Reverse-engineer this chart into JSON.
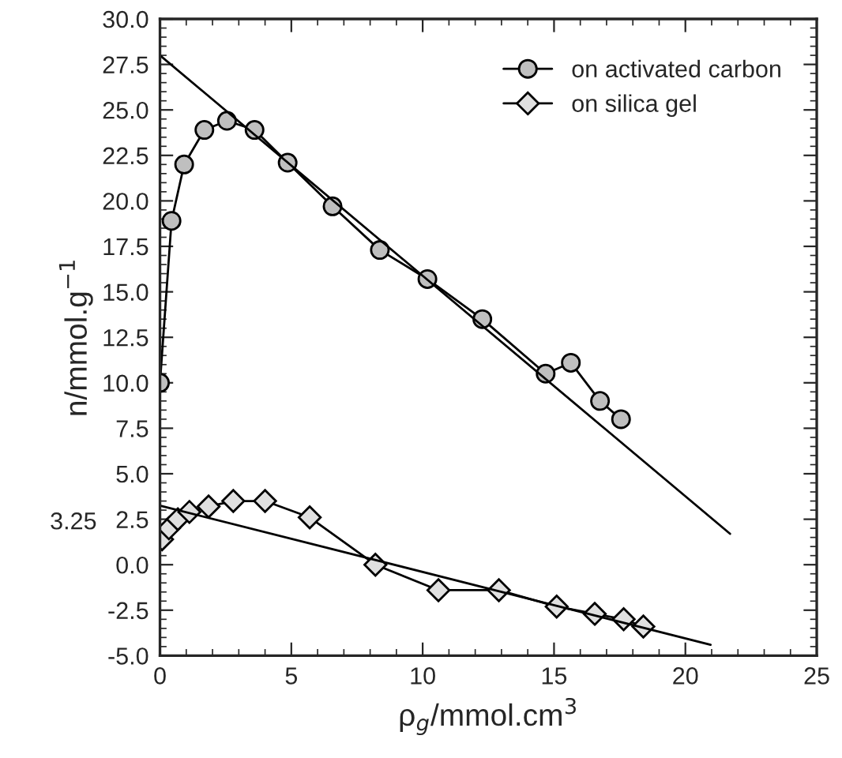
{
  "chart_data": {
    "type": "line",
    "xlabel": "ρ$_{g}$/mmol.cm$^{3}$",
    "ylabel": "n/mmol.g$^{−1}$",
    "xlim": [
      0,
      25
    ],
    "xticks": [
      0,
      5,
      10,
      15,
      20,
      25
    ],
    "ylim": [
      -5,
      30
    ],
    "yticks": [
      {
        "value": -5,
        "label": "-5.0"
      },
      {
        "value": -2.5,
        "label": "-2.5"
      },
      {
        "value": 0,
        "label": "0.0"
      },
      {
        "value": 2.5,
        "label": "2.5"
      },
      {
        "value": 5,
        "label": "5.0"
      },
      {
        "value": 7.5,
        "label": "7.5"
      },
      {
        "value": 10,
        "label": "10.0"
      },
      {
        "value": 12.5,
        "label": "12.5"
      },
      {
        "value": 15,
        "label": "15.0"
      },
      {
        "value": 17.5,
        "label": "17.5"
      },
      {
        "value": 20,
        "label": "20.0"
      },
      {
        "value": 22.5,
        "label": "22.5"
      },
      {
        "value": 25,
        "label": "25.0"
      },
      {
        "value": 27.5,
        "label": "27.5"
      },
      {
        "value": 30,
        "label": "30.0"
      }
    ],
    "grid": false,
    "legend": "top right",
    "series": [
      {
        "name": "on activated carbon",
        "color": "#bfbfbf",
        "marker": "circle",
        "x": [
          0,
          0.44,
          0.92,
          1.69,
          2.55,
          3.6,
          4.86,
          6.57,
          8.37,
          10.18,
          12.27,
          14.68,
          15.64,
          16.75,
          17.55
        ],
        "values": [
          10.0,
          18.9,
          22.0,
          23.9,
          24.4,
          23.9,
          22.1,
          19.7,
          17.3,
          15.7,
          13.5,
          10.5,
          11.1,
          9.0,
          8.0
        ]
      },
      {
        "name": "on silica gel",
        "color": "#e0e0e0",
        "marker": "diamond",
        "x": [
          0.08,
          0.34,
          0.68,
          1.12,
          1.85,
          2.79,
          4.0,
          5.7,
          8.2,
          10.6,
          12.9,
          15.1,
          16.55,
          17.65,
          18.4
        ],
        "values": [
          1.4,
          2.0,
          2.5,
          2.9,
          3.2,
          3.5,
          3.5,
          2.6,
          0.0,
          -1.4,
          -1.4,
          -2.3,
          -2.7,
          -3.0,
          -3.4
        ]
      },
      {
        "color": "#000000",
        "marker": "none",
        "x": [
          0,
          21.7
        ],
        "values": [
          28.0,
          1.7
        ]
      },
      {
        "color": "#000000",
        "marker": "none",
        "x": [
          0,
          20.96
        ],
        "values": [
          3.25,
          -4.4
        ]
      }
    ],
    "annotations": [
      "3.25"
    ]
  }
}
